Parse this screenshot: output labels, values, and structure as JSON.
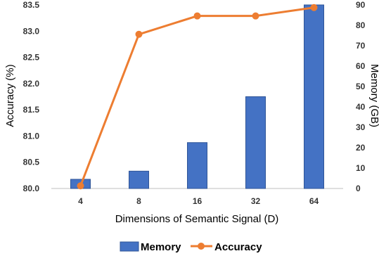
{
  "chart_data": {
    "type": "bar+line",
    "categories": [
      "4",
      "8",
      "16",
      "32",
      "64"
    ],
    "xlabel": "Dimensions of Semantic Signal (D)",
    "ylabel_left": "Accuracy (%)",
    "ylabel_right": "Memory (GB)",
    "ylim_left": [
      80.0,
      83.5
    ],
    "ylim_right": [
      0,
      90
    ],
    "yticks_left": [
      "80.0",
      "80.5",
      "81.0",
      "81.5",
      "82.0",
      "82.5",
      "83.0",
      "83.5"
    ],
    "yticks_right": [
      "0",
      "10",
      "20",
      "30",
      "40",
      "50",
      "60",
      "70",
      "80",
      "90"
    ],
    "series": [
      {
        "name": "Memory",
        "kind": "bar",
        "axis": "right",
        "color": "#4472C4",
        "values": [
          4.5,
          8.5,
          22.5,
          45,
          90
        ]
      },
      {
        "name": "Accuracy",
        "kind": "line",
        "axis": "left",
        "color": "#ED7D31",
        "values": [
          80.05,
          82.94,
          83.29,
          83.29,
          83.45
        ]
      }
    ],
    "legend_position": "bottom",
    "grid": false
  }
}
